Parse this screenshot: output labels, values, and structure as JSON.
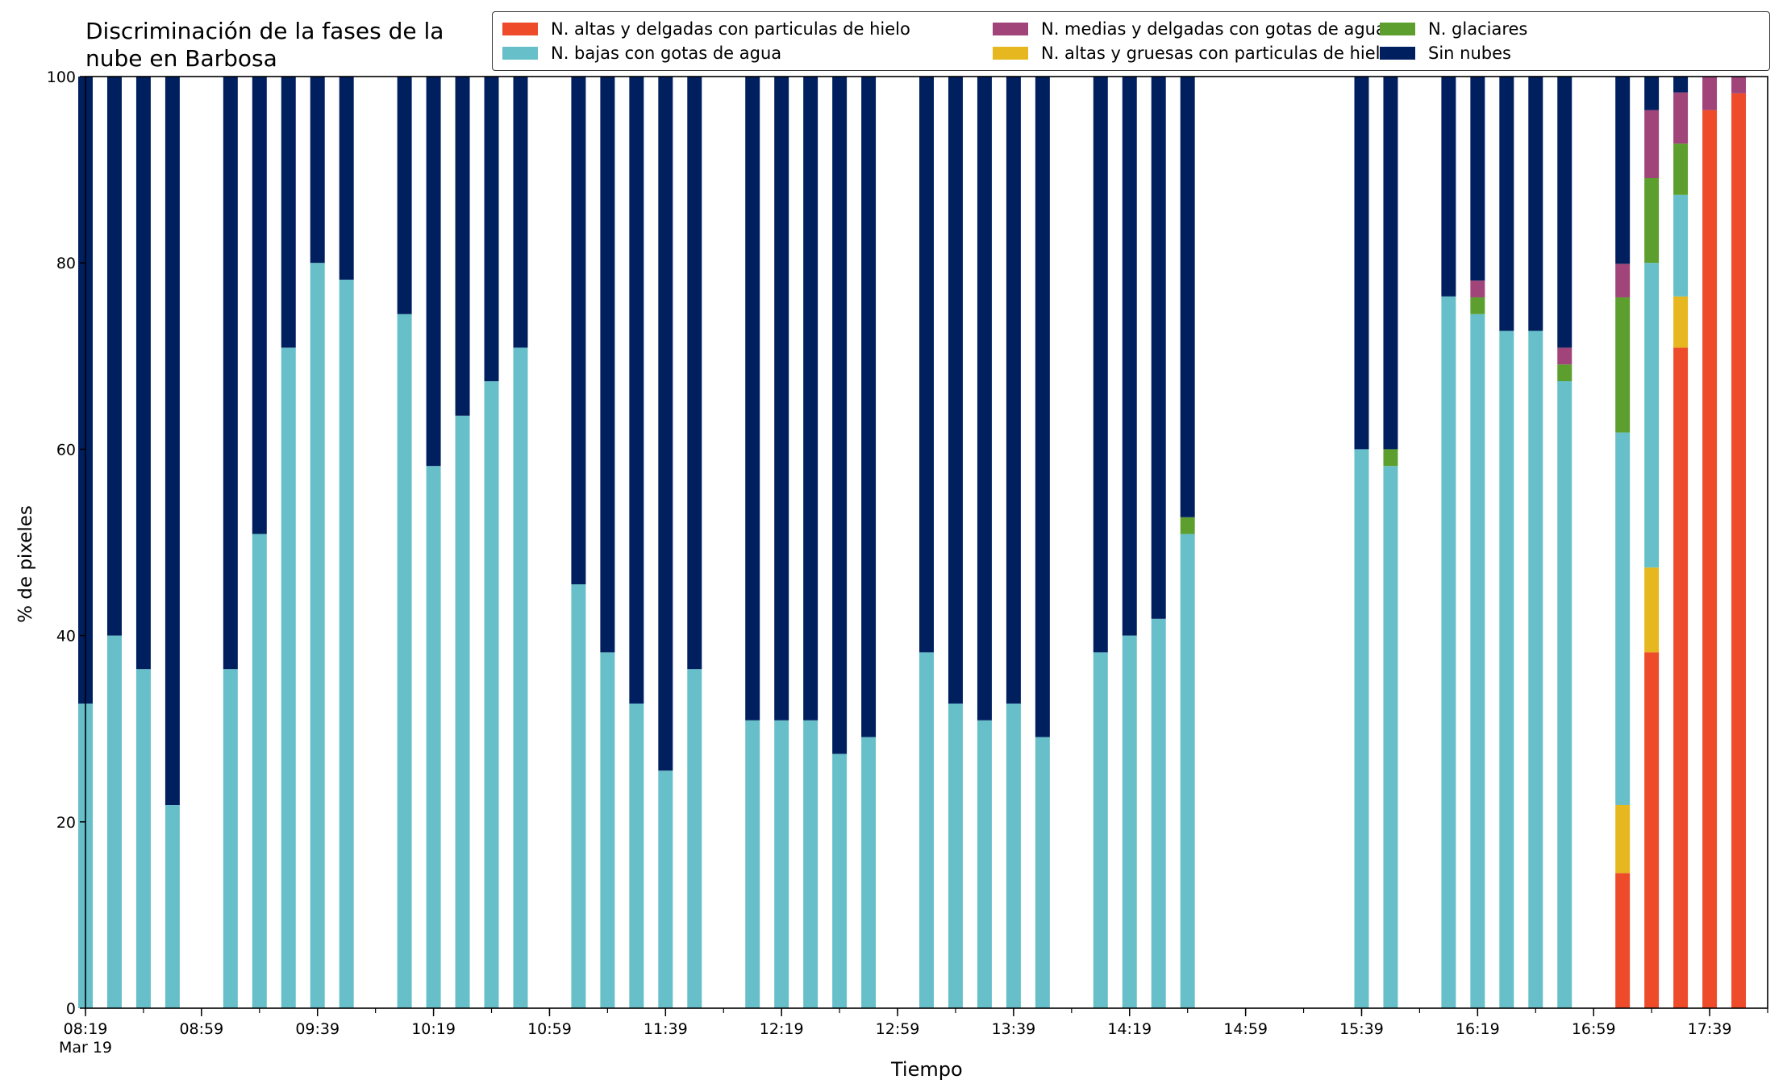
{
  "chart_data": {
    "type": "bar",
    "stacked": true,
    "title_lines": [
      "Discriminación de la fases de la",
      "nube en Barbosa"
    ],
    "xlabel": "Tiempo",
    "ylabel": "% de pixeles",
    "ylim": [
      0,
      100
    ],
    "yticks": [
      0,
      20,
      40,
      60,
      80,
      100
    ],
    "xticks": [
      "08:19",
      "08:59",
      "09:39",
      "10:19",
      "10:59",
      "11:39",
      "12:19",
      "12:59",
      "13:39",
      "14:19",
      "14:59",
      "15:39",
      "16:19",
      "16:59",
      "17:39"
    ],
    "xtick_sub": "Mar 19",
    "x_time_start": "08:19",
    "x_time_end": "17:59",
    "x_step_minutes": 10,
    "legend_position": "top-right",
    "series": [
      {
        "name": "N. altas y delgadas con particulas de hielo",
        "color": "#ee4b2b"
      },
      {
        "name": "N. altas y gruesas con particulas de hielo",
        "color": "#e6b71e"
      },
      {
        "name": "N. bajas con gotas de agua",
        "color": "#67bfca"
      },
      {
        "name": "N. glaciares",
        "color": "#5c9f2e"
      },
      {
        "name": "N. medias y delgadas con gotas de agua",
        "color": "#a04479"
      },
      {
        "name": "Sin nubes",
        "color": "#001f5f"
      }
    ],
    "legend_order": [
      0,
      2,
      4,
      1,
      3,
      5
    ],
    "bars": [
      {
        "time": "08:19",
        "values": [
          0,
          0,
          32.7,
          0,
          0,
          67.3
        ]
      },
      {
        "time": "08:29",
        "values": [
          0,
          0,
          40.0,
          0,
          0,
          60.0
        ]
      },
      {
        "time": "08:39",
        "values": [
          0,
          0,
          36.4,
          0,
          0,
          63.6
        ]
      },
      {
        "time": "08:49",
        "values": [
          0,
          0,
          21.8,
          0,
          0,
          78.2
        ]
      },
      {
        "time": "09:09",
        "values": [
          0,
          0,
          36.4,
          0,
          0,
          63.6
        ]
      },
      {
        "time": "09:19",
        "values": [
          0,
          0,
          50.9,
          0,
          0,
          49.1
        ]
      },
      {
        "time": "09:29",
        "values": [
          0,
          0,
          70.9,
          0,
          0,
          29.1
        ]
      },
      {
        "time": "09:39",
        "values": [
          0,
          0,
          80.0,
          0,
          0,
          20.0
        ]
      },
      {
        "time": "09:49",
        "values": [
          0,
          0,
          78.2,
          0,
          0,
          21.8
        ]
      },
      {
        "time": "10:09",
        "values": [
          0,
          0,
          74.5,
          0,
          0,
          25.5
        ]
      },
      {
        "time": "10:19",
        "values": [
          0,
          0,
          58.2,
          0,
          0,
          41.8
        ]
      },
      {
        "time": "10:29",
        "values": [
          0,
          0,
          63.6,
          0,
          0,
          36.4
        ]
      },
      {
        "time": "10:39",
        "values": [
          0,
          0,
          67.3,
          0,
          0,
          32.7
        ]
      },
      {
        "time": "10:49",
        "values": [
          0,
          0,
          70.9,
          0,
          0,
          29.1
        ]
      },
      {
        "time": "11:09",
        "values": [
          0,
          0,
          45.5,
          0,
          0,
          54.5
        ]
      },
      {
        "time": "11:19",
        "values": [
          0,
          0,
          38.2,
          0,
          0,
          61.8
        ]
      },
      {
        "time": "11:29",
        "values": [
          0,
          0,
          32.7,
          0,
          0,
          67.3
        ]
      },
      {
        "time": "11:39",
        "values": [
          0,
          0,
          25.5,
          0,
          0,
          74.5
        ]
      },
      {
        "time": "11:49",
        "values": [
          0,
          0,
          36.4,
          0,
          0,
          63.6
        ]
      },
      {
        "time": "12:09",
        "values": [
          0,
          0,
          30.9,
          0,
          0,
          69.1
        ]
      },
      {
        "time": "12:19",
        "values": [
          0,
          0,
          30.9,
          0,
          0,
          69.1
        ]
      },
      {
        "time": "12:29",
        "values": [
          0,
          0,
          30.9,
          0,
          0,
          69.1
        ]
      },
      {
        "time": "12:39",
        "values": [
          0,
          0,
          27.3,
          0,
          0,
          72.7
        ]
      },
      {
        "time": "12:49",
        "values": [
          0,
          0,
          29.1,
          0,
          0,
          70.9
        ]
      },
      {
        "time": "13:09",
        "values": [
          0,
          0,
          38.2,
          0,
          0,
          61.8
        ]
      },
      {
        "time": "13:19",
        "values": [
          0,
          0,
          32.7,
          0,
          0,
          67.3
        ]
      },
      {
        "time": "13:29",
        "values": [
          0,
          0,
          30.9,
          0,
          0,
          69.1
        ]
      },
      {
        "time": "13:39",
        "values": [
          0,
          0,
          32.7,
          0,
          0,
          67.3
        ]
      },
      {
        "time": "13:49",
        "values": [
          0,
          0,
          29.1,
          0,
          0,
          70.9
        ]
      },
      {
        "time": "14:09",
        "values": [
          0,
          0,
          38.2,
          0,
          0,
          61.8
        ]
      },
      {
        "time": "14:19",
        "values": [
          0,
          0,
          40.0,
          0,
          0,
          60.0
        ]
      },
      {
        "time": "14:29",
        "values": [
          0,
          0,
          41.8,
          0,
          0,
          58.2
        ]
      },
      {
        "time": "14:39",
        "values": [
          0,
          0,
          50.9,
          1.8,
          0,
          47.3
        ]
      },
      {
        "time": "15:39",
        "values": [
          0,
          0,
          60.0,
          0,
          0,
          40.0
        ]
      },
      {
        "time": "15:49",
        "values": [
          0,
          0,
          58.2,
          1.8,
          0,
          40.0
        ]
      },
      {
        "time": "16:09",
        "values": [
          0,
          0,
          76.4,
          0,
          0,
          23.6
        ]
      },
      {
        "time": "16:19",
        "values": [
          0,
          0,
          74.5,
          1.8,
          1.8,
          21.9
        ]
      },
      {
        "time": "16:29",
        "values": [
          0,
          0,
          72.7,
          0,
          0,
          27.3
        ]
      },
      {
        "time": "16:39",
        "values": [
          0,
          0,
          72.7,
          0,
          0,
          27.3
        ]
      },
      {
        "time": "16:49",
        "values": [
          0,
          0,
          67.3,
          1.8,
          1.8,
          29.1
        ]
      },
      {
        "time": "17:09",
        "values": [
          14.5,
          7.3,
          40.0,
          14.5,
          3.6,
          20.1
        ]
      },
      {
        "time": "17:19",
        "values": [
          38.2,
          9.1,
          32.7,
          9.1,
          7.3,
          3.6
        ]
      },
      {
        "time": "17:29",
        "values": [
          70.9,
          5.5,
          10.9,
          5.5,
          5.5,
          1.7
        ]
      },
      {
        "time": "17:39",
        "values": [
          96.4,
          0,
          0,
          0,
          3.6,
          0
        ]
      },
      {
        "time": "17:49",
        "values": [
          98.2,
          0,
          0,
          0,
          1.8,
          0
        ]
      }
    ]
  }
}
